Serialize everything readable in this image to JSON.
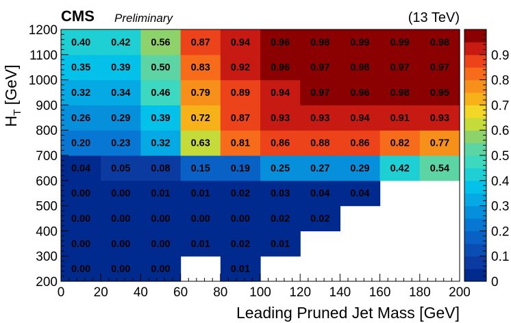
{
  "header": {
    "experiment": "CMS",
    "status": "Preliminary",
    "energy": "(13 TeV)"
  },
  "chart_data": {
    "type": "heatmap",
    "xlabel": "Leading Pruned Jet Mass [GeV]",
    "ylabel": "H_T [GeV]",
    "xlim": [
      0,
      200
    ],
    "ylim": [
      200,
      1200
    ],
    "x_edges": [
      0,
      20,
      40,
      60,
      80,
      100,
      120,
      140,
      160,
      180,
      200
    ],
    "y_edges": [
      200,
      300,
      400,
      500,
      600,
      700,
      800,
      900,
      1000,
      1100,
      1200
    ],
    "x_ticks": [
      0,
      20,
      40,
      60,
      80,
      100,
      120,
      140,
      160,
      180,
      200
    ],
    "y_ticks": [
      200,
      300,
      400,
      500,
      600,
      700,
      800,
      900,
      1000,
      1100,
      1200
    ],
    "z_range": [
      0,
      1
    ],
    "colorbar_ticks": [
      0,
      0.1,
      0.2,
      0.3,
      0.4,
      0.5,
      0.6,
      0.7,
      0.8,
      0.9
    ],
    "colorbar_labels": [
      "0",
      "0.1",
      "0.2",
      "0.3",
      "0.4",
      "0.5",
      "0.6",
      "0.7",
      "0.8",
      "0.9"
    ],
    "grid": false,
    "values": [
      [
        "0.00",
        "0.00",
        "0.00",
        null,
        "0.01",
        null,
        null,
        null,
        null,
        null
      ],
      [
        "0.00",
        "0.00",
        "0.00",
        "0.01",
        "0.02",
        "0.01",
        null,
        null,
        null,
        null
      ],
      [
        "0.00",
        "0.00",
        "0.00",
        "0.00",
        "0.00",
        "0.02",
        "0.02",
        null,
        null,
        null
      ],
      [
        "0.00",
        "0.00",
        "0.01",
        "0.01",
        "0.02",
        "0.03",
        "0.04",
        "0.04",
        null,
        null
      ],
      [
        "0.04",
        "0.05",
        "0.08",
        "0.15",
        "0.19",
        "0.25",
        "0.27",
        "0.29",
        "0.42",
        "0.54"
      ],
      [
        "0.20",
        "0.23",
        "0.32",
        "0.63",
        "0.81",
        "0.86",
        "0.88",
        "0.86",
        "0.82",
        "0.77"
      ],
      [
        "0.26",
        "0.29",
        "0.39",
        "0.72",
        "0.87",
        "0.93",
        "0.93",
        "0.94",
        "0.91",
        "0.93"
      ],
      [
        "0.32",
        "0.34",
        "0.46",
        "0.79",
        "0.89",
        "0.94",
        "0.97",
        "0.96",
        "0.98",
        "0.95"
      ],
      [
        "0.35",
        "0.39",
        "0.50",
        "0.83",
        "0.92",
        "0.96",
        "0.97",
        "0.98",
        "0.97",
        "0.97"
      ],
      [
        "0.40",
        "0.42",
        "0.56",
        "0.87",
        "0.94",
        "0.96",
        "0.98",
        "0.99",
        "0.99",
        "0.98"
      ]
    ]
  }
}
